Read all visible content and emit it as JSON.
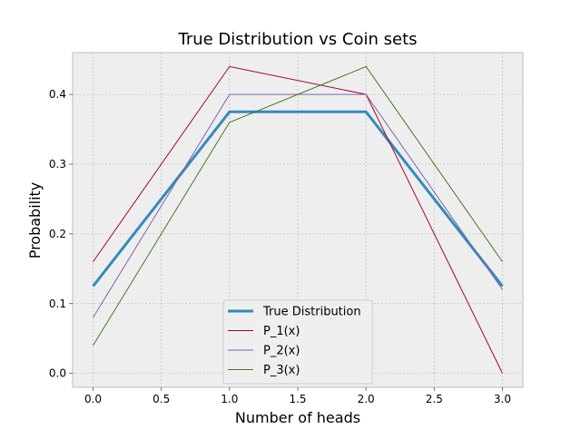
{
  "chart_data": {
    "type": "line",
    "title": "True Distribution vs Coin sets",
    "xlabel": "Number of heads",
    "ylabel": "Probability",
    "xlim": [
      -0.15,
      3.15
    ],
    "ylim": [
      -0.02,
      0.46
    ],
    "xticks": [
      0.0,
      0.5,
      1.0,
      1.5,
      2.0,
      2.5,
      3.0
    ],
    "xtick_labels": [
      "0.0",
      "0.5",
      "1.0",
      "1.5",
      "2.0",
      "2.5",
      "3.0"
    ],
    "yticks": [
      0.0,
      0.1,
      0.2,
      0.3,
      0.4
    ],
    "ytick_labels": [
      "0.0",
      "0.1",
      "0.2",
      "0.3",
      "0.4"
    ],
    "grid": true,
    "legend_position": "lower center",
    "x": [
      0,
      1,
      2,
      3
    ],
    "series": [
      {
        "name": "True Distribution",
        "values": [
          0.125,
          0.375,
          0.375,
          0.125
        ],
        "color": "#348abd",
        "emphasis": "thick"
      },
      {
        "name": "P_1(x)",
        "values": [
          0.16,
          0.44,
          0.4,
          0.0
        ],
        "color": "#a60628",
        "emphasis": "thin"
      },
      {
        "name": "P_2(x)",
        "values": [
          0.08,
          0.4,
          0.4,
          0.12
        ],
        "color": "#7a68a6",
        "emphasis": "thin"
      },
      {
        "name": "P_3(x)",
        "values": [
          0.04,
          0.36,
          0.44,
          0.16
        ],
        "color": "#467821",
        "emphasis": "thin"
      }
    ]
  }
}
